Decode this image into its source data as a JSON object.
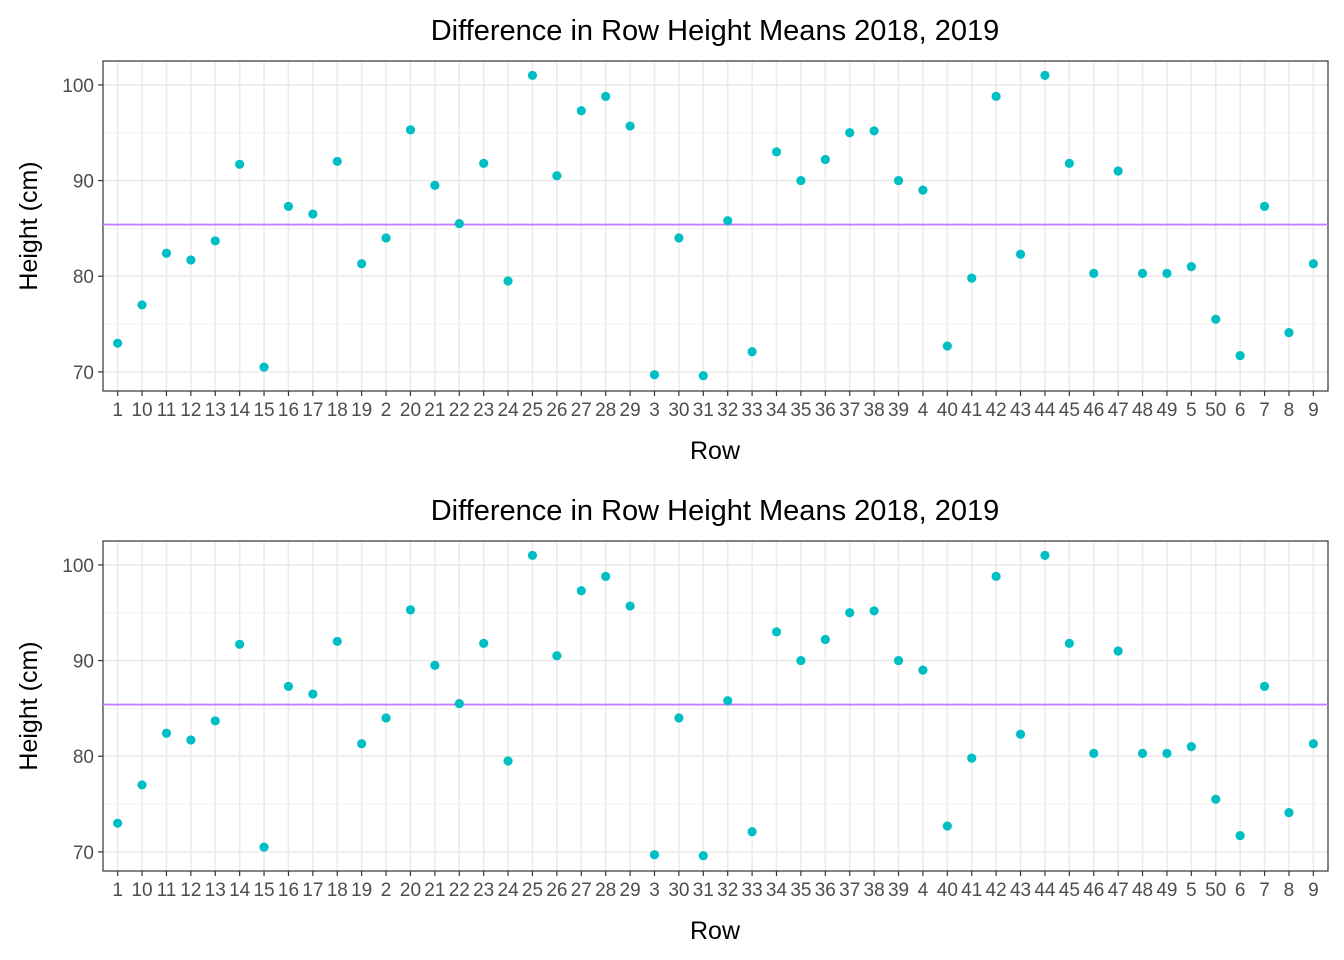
{
  "chart_data": [
    {
      "type": "scatter",
      "title": "Difference in Row Height Means 2018, 2019",
      "xlabel": "Row",
      "ylabel": "Height (cm)",
      "ylim": [
        68,
        102.5
      ],
      "yticks": [
        70,
        80,
        90,
        100
      ],
      "grid": true,
      "legend": "none",
      "point_color": "#00BFC4",
      "hline": {
        "y": 85.4,
        "color": "#C77CFF"
      },
      "categories": [
        "1",
        "10",
        "11",
        "12",
        "13",
        "14",
        "15",
        "16",
        "17",
        "18",
        "19",
        "2",
        "20",
        "21",
        "22",
        "23",
        "24",
        "25",
        "26",
        "27",
        "28",
        "29",
        "3",
        "30",
        "31",
        "32",
        "33",
        "34",
        "35",
        "36",
        "37",
        "38",
        "39",
        "4",
        "40",
        "41",
        "42",
        "43",
        "44",
        "45",
        "46",
        "47",
        "48",
        "49",
        "5",
        "50",
        "6",
        "7",
        "8",
        "9"
      ],
      "values": [
        73.0,
        77.0,
        82.4,
        81.7,
        83.7,
        91.7,
        70.5,
        87.3,
        86.5,
        92.0,
        81.3,
        84.0,
        95.3,
        89.5,
        85.5,
        91.8,
        79.5,
        101.0,
        90.5,
        97.3,
        98.8,
        95.7,
        69.7,
        84.0,
        69.6,
        85.8,
        72.1,
        93.0,
        90.0,
        92.2,
        95.0,
        95.2,
        90.0,
        89.0,
        72.7,
        79.8,
        98.8,
        82.3,
        101.0,
        91.8,
        80.3,
        91.0,
        80.3,
        80.3,
        81.0,
        75.5,
        71.7,
        87.3,
        74.1,
        81.3
      ]
    },
    {
      "type": "scatter",
      "title": "Difference in Row Height Means 2018, 2019",
      "xlabel": "Row",
      "ylabel": "Height (cm)",
      "ylim": [
        68,
        102.5
      ],
      "yticks": [
        70,
        80,
        90,
        100
      ],
      "grid": true,
      "legend": "none",
      "point_color": "#00BFC4",
      "hline": {
        "y": 85.4,
        "color": "#C77CFF"
      },
      "categories": [
        "1",
        "10",
        "11",
        "12",
        "13",
        "14",
        "15",
        "16",
        "17",
        "18",
        "19",
        "2",
        "20",
        "21",
        "22",
        "23",
        "24",
        "25",
        "26",
        "27",
        "28",
        "29",
        "3",
        "30",
        "31",
        "32",
        "33",
        "34",
        "35",
        "36",
        "37",
        "38",
        "39",
        "4",
        "40",
        "41",
        "42",
        "43",
        "44",
        "45",
        "46",
        "47",
        "48",
        "49",
        "5",
        "50",
        "6",
        "7",
        "8",
        "9"
      ],
      "values": [
        73.0,
        77.0,
        82.4,
        81.7,
        83.7,
        91.7,
        70.5,
        87.3,
        86.5,
        92.0,
        81.3,
        84.0,
        95.3,
        89.5,
        85.5,
        91.8,
        79.5,
        101.0,
        90.5,
        97.3,
        98.8,
        95.7,
        69.7,
        84.0,
        69.6,
        85.8,
        72.1,
        93.0,
        90.0,
        92.2,
        95.0,
        95.2,
        90.0,
        89.0,
        72.7,
        79.8,
        98.8,
        82.3,
        101.0,
        91.8,
        80.3,
        91.0,
        80.3,
        80.3,
        81.0,
        75.5,
        71.7,
        87.3,
        74.1,
        81.3
      ]
    }
  ]
}
